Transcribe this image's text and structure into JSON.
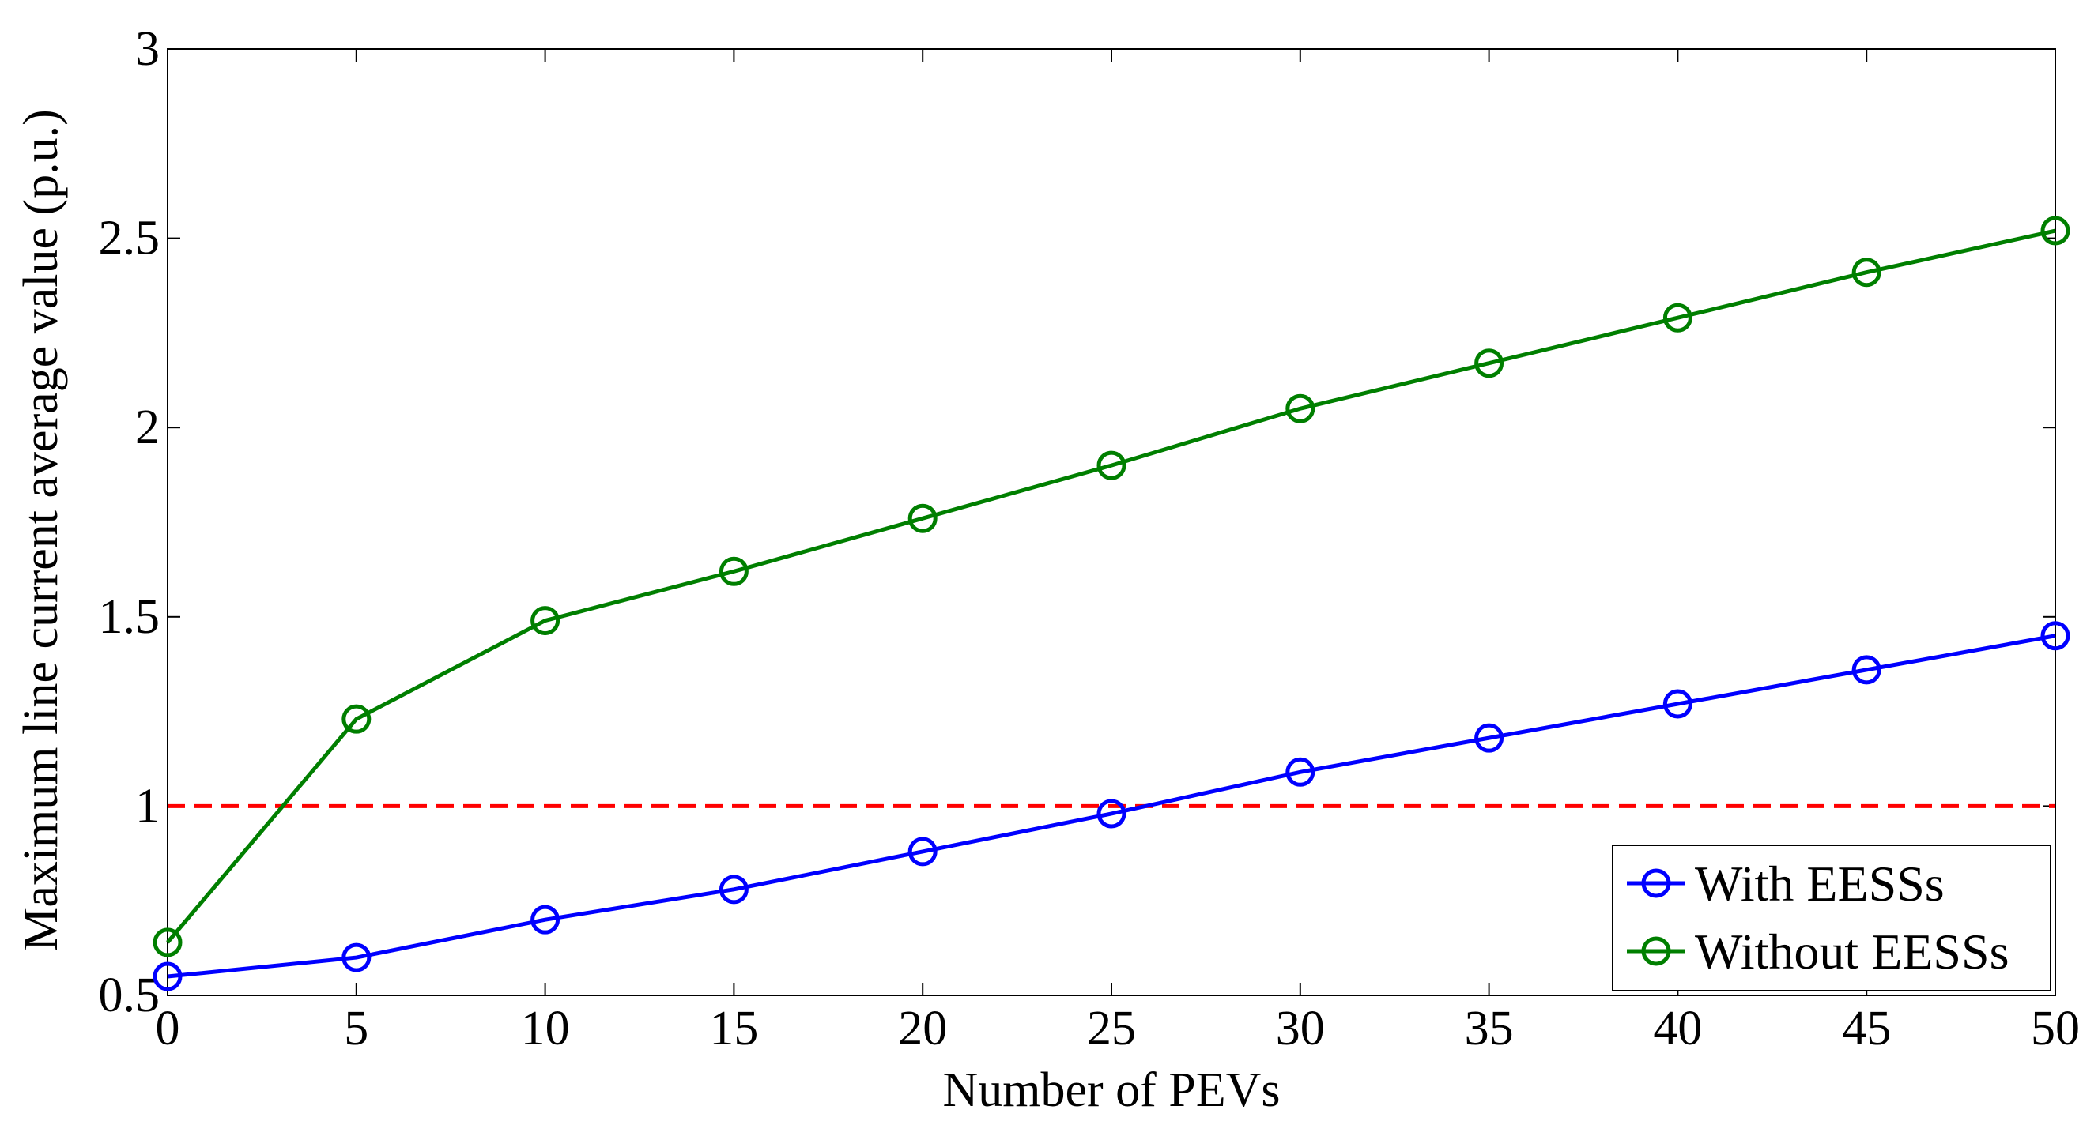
{
  "chart_data": {
    "type": "line",
    "title": "",
    "xlabel": "Number of PEVs",
    "ylabel": "Maximum line current average value (p.u.)",
    "xlim": [
      0,
      50
    ],
    "ylim": [
      0.5,
      3
    ],
    "xticks": [
      0,
      5,
      10,
      15,
      20,
      25,
      30,
      35,
      40,
      45,
      50
    ],
    "yticks": [
      0.5,
      1,
      1.5,
      2,
      2.5,
      3
    ],
    "xtick_labels": [
      "0",
      "5",
      "10",
      "15",
      "20",
      "25",
      "30",
      "35",
      "40",
      "45",
      "50"
    ],
    "ytick_labels": [
      "0.5",
      "1",
      "1.5",
      "2",
      "2.5",
      "3"
    ],
    "x": [
      0,
      5,
      10,
      15,
      20,
      25,
      30,
      35,
      40,
      45,
      50
    ],
    "series": [
      {
        "name": "With EESSs",
        "color": "#0000ff",
        "marker": "circle",
        "values": [
          0.55,
          0.6,
          0.7,
          0.78,
          0.88,
          0.98,
          1.09,
          1.18,
          1.27,
          1.36,
          1.45
        ]
      },
      {
        "name": "Without EESSs",
        "color": "#007f00",
        "marker": "circle",
        "values": [
          0.64,
          1.23,
          1.49,
          1.62,
          1.76,
          1.9,
          2.05,
          2.17,
          2.29,
          2.41,
          2.52
        ]
      }
    ],
    "reference_line": {
      "y": 1,
      "color": "#ff0000",
      "style": "dashed"
    },
    "legend_position": "bottom-right",
    "grid": false
  }
}
